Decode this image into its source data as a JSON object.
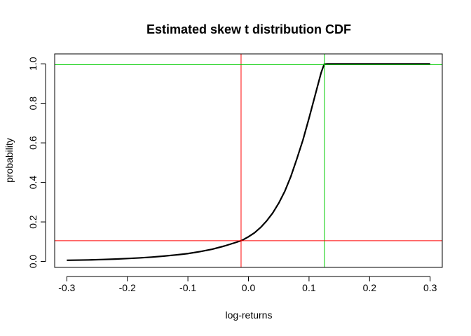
{
  "chart_data": {
    "type": "line",
    "title": "Estimated skew t distribution CDF",
    "xlabel": "log-returns",
    "ylabel": "probability",
    "xlim": [
      -0.32,
      0.32
    ],
    "ylim": [
      -0.03,
      1.05
    ],
    "xticks": [
      -0.3,
      -0.2,
      -0.1,
      0.0,
      0.1,
      0.2,
      0.3
    ],
    "xtick_labels": [
      "-0.3",
      "-0.2",
      "-0.1",
      "0.0",
      "0.1",
      "0.2",
      "0.3"
    ],
    "yticks": [
      0.0,
      0.2,
      0.4,
      0.6,
      0.8,
      1.0
    ],
    "ytick_labels": [
      "0.0",
      "0.2",
      "0.4",
      "0.6",
      "0.8",
      "1.0"
    ],
    "grid": false,
    "series": [
      {
        "color": "#000000",
        "x": [
          -0.3,
          -0.28,
          -0.26,
          -0.24,
          -0.22,
          -0.2,
          -0.18,
          -0.16,
          -0.14,
          -0.12,
          -0.1,
          -0.08,
          -0.06,
          -0.04,
          -0.02,
          -0.01,
          0.0,
          0.01,
          0.02,
          0.03,
          0.04,
          0.05,
          0.06,
          0.07,
          0.08,
          0.09,
          0.1,
          0.11,
          0.12,
          0.125,
          0.13,
          0.15,
          0.2,
          0.25,
          0.3
        ],
        "y": [
          0.006,
          0.007,
          0.008,
          0.01,
          0.012,
          0.015,
          0.018,
          0.022,
          0.027,
          0.033,
          0.04,
          0.05,
          0.062,
          0.078,
          0.097,
          0.108,
          0.125,
          0.145,
          0.172,
          0.205,
          0.245,
          0.295,
          0.355,
          0.43,
          0.52,
          0.615,
          0.725,
          0.84,
          0.955,
          0.998,
          0.999,
          0.999,
          0.999,
          0.999,
          0.999
        ]
      }
    ],
    "reference_lines": {
      "vertical": [
        {
          "x": -0.0122,
          "color": "#ff0000"
        },
        {
          "x": 0.1255,
          "color": "#00cc00"
        }
      ],
      "horizontal": [
        {
          "y": 0.105,
          "color": "#ff0000"
        },
        {
          "y": 0.995,
          "color": "#00cc00"
        }
      ]
    }
  }
}
